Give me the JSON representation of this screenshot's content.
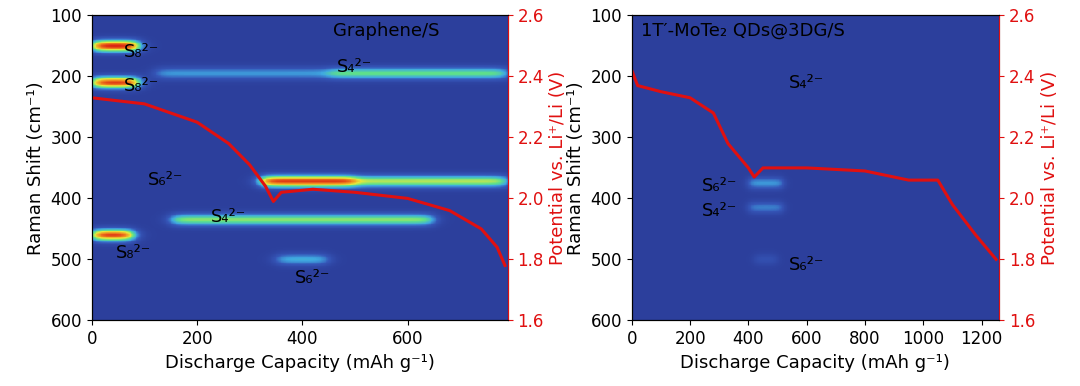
{
  "chart_data": [
    {
      "type": "heatmap_line",
      "xlabel": "Discharge Capacity (mAh g⁻¹)",
      "ylabel": "Raman Shift (cm⁻¹)",
      "y2label": "Potential vs. Li⁺/Li (V)",
      "xlim": [
        0,
        790
      ],
      "xticks": [
        0,
        200,
        400,
        600
      ],
      "ylim": [
        600,
        100
      ],
      "yticks": [
        100,
        200,
        300,
        400,
        500,
        600
      ],
      "y2lim": [
        1.6,
        2.6
      ],
      "y2ticks": [
        1.6,
        1.8,
        2.0,
        2.2,
        2.4,
        2.6
      ],
      "intensity_range": [
        0,
        1
      ],
      "bands": [
        {
          "shift": 150,
          "from": 0,
          "to": 90,
          "intensity": 1.0
        },
        {
          "shift": 210,
          "from": 0,
          "to": 90,
          "intensity": 0.95
        },
        {
          "shift": 460,
          "from": 0,
          "to": 80,
          "intensity": 0.95
        },
        {
          "shift": 195,
          "from": 120,
          "to": 450,
          "intensity": 0.3
        },
        {
          "shift": 195,
          "from": 450,
          "to": 790,
          "intensity": 0.5
        },
        {
          "shift": 372,
          "from": 320,
          "to": 500,
          "intensity": 0.95
        },
        {
          "shift": 372,
          "from": 500,
          "to": 790,
          "intensity": 0.6
        },
        {
          "shift": 435,
          "from": 150,
          "to": 650,
          "intensity": 0.55
        },
        {
          "shift": 500,
          "from": 350,
          "to": 450,
          "intensity": 0.35
        }
      ],
      "series": [
        {
          "color": "#e01010",
          "axis": "y2",
          "x": [
            0,
            100,
            200,
            260,
            300,
            330,
            345,
            360,
            420,
            500,
            600,
            680,
            740,
            770,
            785
          ],
          "values": [
            2.33,
            2.31,
            2.25,
            2.18,
            2.11,
            2.04,
            1.99,
            2.02,
            2.03,
            2.02,
            2.0,
            1.96,
            1.9,
            1.84,
            1.78
          ]
        }
      ],
      "annotations": [
        {
          "text": "Graphene/S",
          "x": 560,
          "y": 125
        },
        {
          "text": "S₈²⁻",
          "x": 95,
          "y": 160
        },
        {
          "text": "S₈²⁻",
          "x": 95,
          "y": 215
        },
        {
          "text": "S₄²⁻",
          "x": 500,
          "y": 185
        },
        {
          "text": "S₆²⁻",
          "x": 140,
          "y": 370
        },
        {
          "text": "S₄²⁻",
          "x": 260,
          "y": 430
        },
        {
          "text": "S₈²⁻",
          "x": 80,
          "y": 490
        },
        {
          "text": "S₆²⁻",
          "x": 420,
          "y": 530
        }
      ]
    },
    {
      "type": "heatmap_line",
      "xlabel": "Discharge Capacity (mAh g⁻¹)",
      "ylabel": "Raman Shift (cm⁻¹)",
      "y2label": "Potential vs. Li⁺/Li (V)",
      "xlim": [
        0,
        1260
      ],
      "xticks": [
        0,
        200,
        400,
        600,
        800,
        1000,
        1200
      ],
      "ylim": [
        600,
        100
      ],
      "yticks": [
        100,
        200,
        300,
        400,
        500,
        600
      ],
      "y2lim": [
        1.6,
        2.6
      ],
      "y2ticks": [
        1.6,
        1.8,
        2.0,
        2.2,
        2.4,
        2.6
      ],
      "intensity_range": [
        0,
        1
      ],
      "bands": [
        {
          "shift": 375,
          "from": 400,
          "to": 520,
          "intensity": 0.3
        },
        {
          "shift": 415,
          "from": 400,
          "to": 520,
          "intensity": 0.25
        },
        {
          "shift": 500,
          "from": 420,
          "to": 500,
          "intensity": 0.12
        }
      ],
      "series": [
        {
          "color": "#e01010",
          "axis": "y2",
          "x": [
            0,
            20,
            100,
            200,
            280,
            330,
            400,
            420,
            450,
            600,
            800,
            950,
            1050,
            1100,
            1180,
            1250
          ],
          "values": [
            2.42,
            2.37,
            2.35,
            2.33,
            2.28,
            2.18,
            2.1,
            2.07,
            2.1,
            2.1,
            2.09,
            2.06,
            2.06,
            1.98,
            1.88,
            1.8
          ]
        }
      ],
      "annotations": [
        {
          "text": "1T′-MoTe₂ QDs@3DG/S",
          "x": 380,
          "y": 125
        },
        {
          "text": "S₄²⁻",
          "x": 600,
          "y": 210
        },
        {
          "text": "S₆²⁻",
          "x": 300,
          "y": 380
        },
        {
          "text": "S₄²⁻",
          "x": 300,
          "y": 420
        },
        {
          "text": "S₆²⁻",
          "x": 600,
          "y": 510
        }
      ]
    }
  ]
}
